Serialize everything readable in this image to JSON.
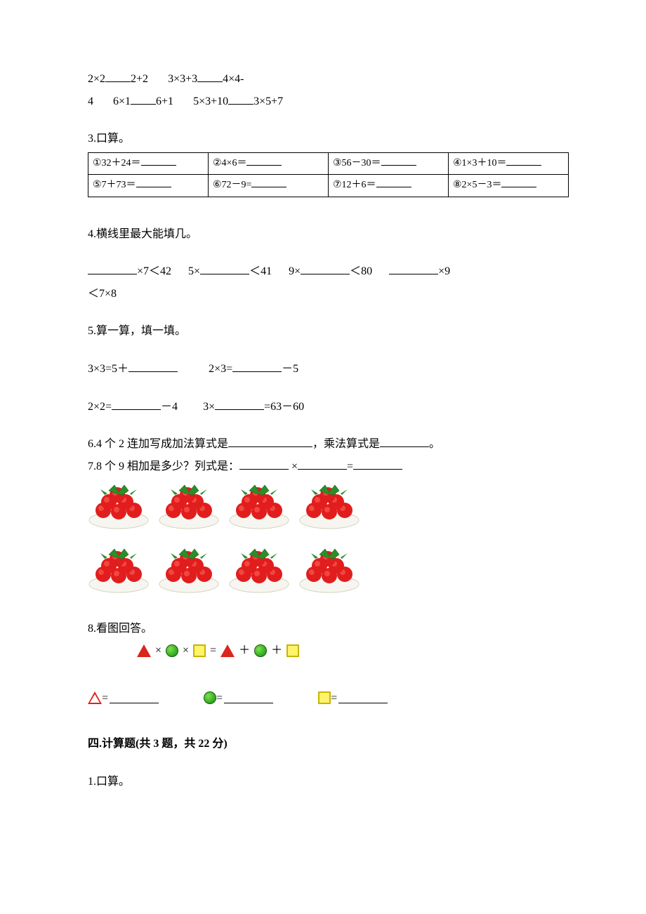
{
  "q2": {
    "line1_part1": "2×2",
    "line1_part2": "2+2",
    "line1_part3": "3×3+3",
    "line1_part4": "4×4-",
    "line2_part1": "4",
    "line2_part2": "6×1",
    "line2_part3": "6+1",
    "line2_part4": "5×3+10",
    "line2_part5": "3×5+7"
  },
  "q3": {
    "title": "3.口算。",
    "cells": {
      "c1": "①32＋24＝",
      "c2": "②4×6＝",
      "c3": "③56－30＝",
      "c4": "④1×3＋10＝",
      "c5": "⑤7＋73＝",
      "c6": "⑥72－9=",
      "c7": "⑦12＋6＝",
      "c8": "⑧2×5－3＝"
    }
  },
  "q4": {
    "title": "4.横线里最大能填几。",
    "line1_a": "×7＜42",
    "line1_b": "5×",
    "line1_c": "＜41",
    "line1_d": "9×",
    "line1_e": "＜80",
    "line1_f": "×9",
    "line2": "＜7×8"
  },
  "q5": {
    "title": "5.算一算，填一填。",
    "row1a": "3×3=5＋",
    "row1b": "2×3=",
    "row1b_tail": "－5",
    "row2a": "2×2=",
    "row2a_tail": "－4",
    "row2b": "3×",
    "row2b_tail": "=63－60"
  },
  "q6": {
    "text_a": "6.4 个 2 连加写成加法算式是",
    "text_b": "，乘法算式是",
    "text_c": "。"
  },
  "q7": {
    "text_a": "7.8 个 9 相加是多少？列式是：",
    "times": " ×",
    "eq": "="
  },
  "q8": {
    "title": "8.看图回答。",
    "op_times": "×",
    "op_eq": "=",
    "op_plus": "＋",
    "eq_label": "="
  },
  "section4": {
    "title": "四.计算题(共 3 题，共 22 分)",
    "q1": "1.口算。"
  },
  "tomato": {
    "plate_color": "#f7f5ef",
    "plate_border": "#d6d2c4",
    "tomato_color": "#e11d1d",
    "tomato_highlight": "#ff6a5a",
    "leaf_color": "#2a8f2a",
    "leaf_dark": "#1c6b1c",
    "rows": 2,
    "cols": 4
  }
}
